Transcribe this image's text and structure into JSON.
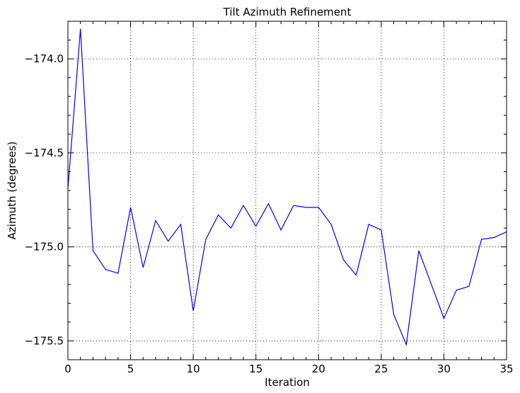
{
  "chart_data": {
    "type": "line",
    "title": "Tilt Azimuth Refinement",
    "xlabel": "Iteration",
    "ylabel": "Azimuth (degrees)",
    "xlim": [
      0,
      35
    ],
    "ylim": [
      -175.6,
      -173.8
    ],
    "grid": true,
    "x_ticks": [
      0,
      5,
      10,
      15,
      20,
      25,
      30,
      35
    ],
    "x_tick_labels": [
      "0",
      "5",
      "10",
      "15",
      "20",
      "25",
      "30",
      "35"
    ],
    "y_ticks": [
      -174.0,
      -174.5,
      -175.0,
      -175.5
    ],
    "y_tick_labels": [
      "−174.0",
      "−174.5",
      "−175.0",
      "−175.5"
    ],
    "series": [
      {
        "color": "#0000ff",
        "x": [
          0,
          1,
          2,
          3,
          4,
          5,
          6,
          7,
          8,
          9,
          10,
          11,
          12,
          13,
          14,
          15,
          16,
          17,
          18,
          19,
          20,
          21,
          22,
          23,
          24,
          25,
          26,
          27,
          28,
          29,
          30,
          31,
          32,
          33,
          34,
          35
        ],
        "y": [
          -174.69,
          -173.84,
          -175.02,
          -175.12,
          -175.14,
          -174.79,
          -175.11,
          -174.86,
          -174.97,
          -174.88,
          -175.34,
          -174.96,
          -174.83,
          -174.9,
          -174.78,
          -174.89,
          -174.77,
          -174.91,
          -174.78,
          -174.79,
          -174.79,
          -174.88,
          -175.07,
          -175.15,
          -174.88,
          -174.91,
          -175.36,
          -175.52,
          -175.02,
          -175.2,
          -175.38,
          -175.23,
          -175.21,
          -174.96,
          -174.95,
          -174.92
        ]
      }
    ]
  }
}
